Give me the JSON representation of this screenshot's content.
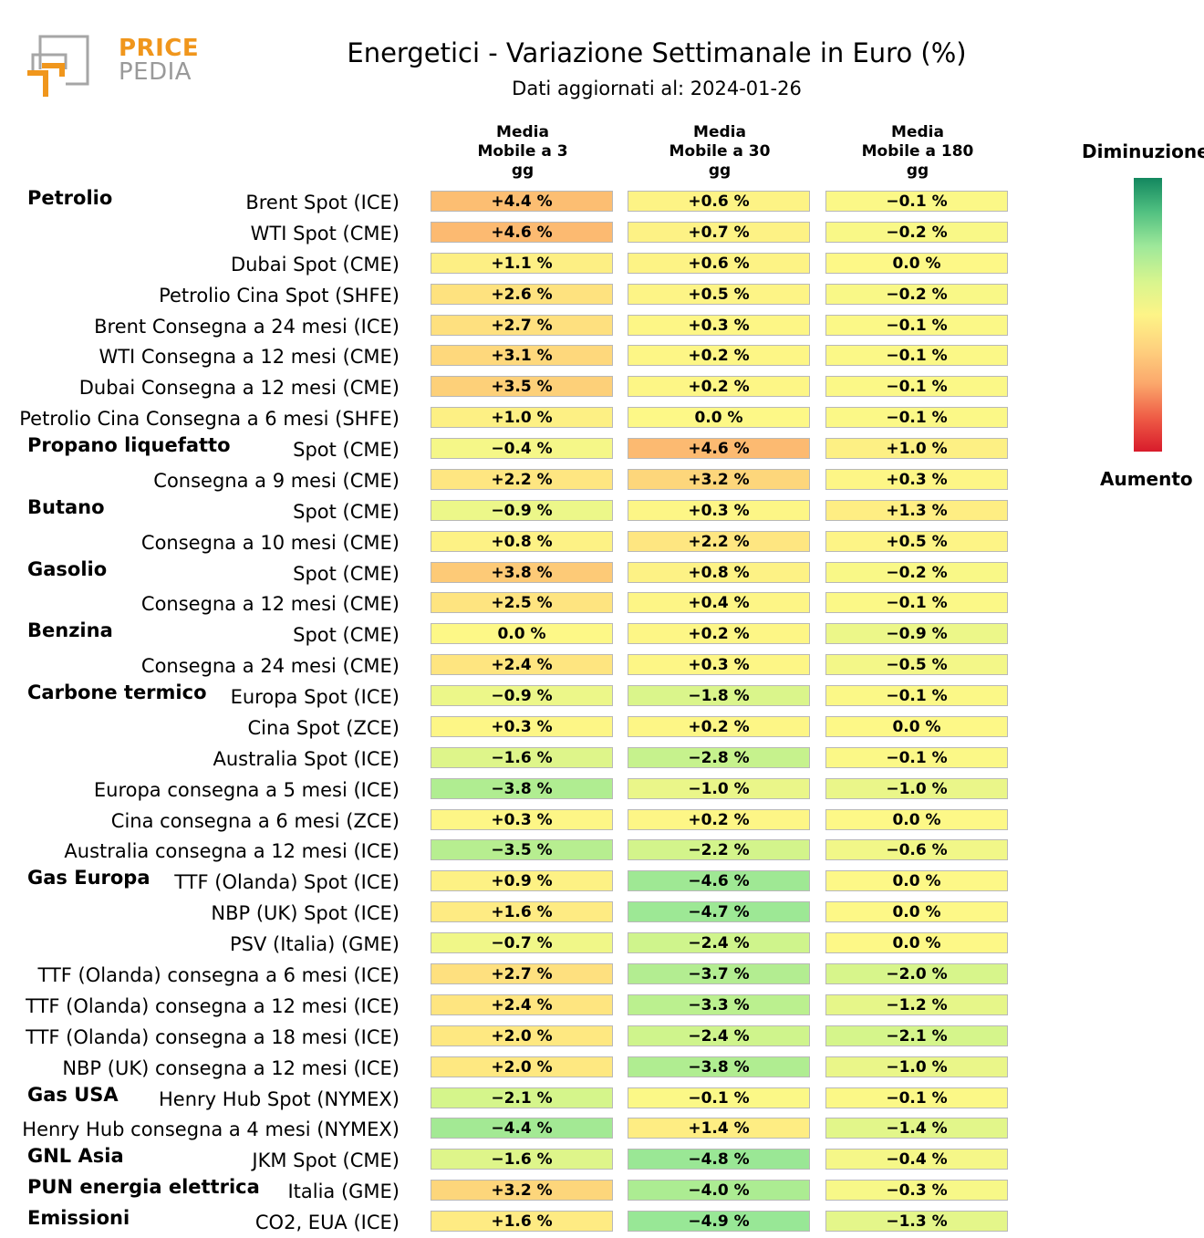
{
  "brand": {
    "line1": "PRICE",
    "line2": "PEDIA",
    "orange": "#f0961c",
    "grey": "#9a9a9a"
  },
  "header": {
    "title": "Energetici - Variazione Settimanale in Euro (%)",
    "subtitle": "Dati aggiornati al: 2024-01-26"
  },
  "legend": {
    "top_label": "Diminuzione",
    "bottom_label": "Aumento",
    "colors": [
      "#13875f",
      "#9ee89a",
      "#fdf487",
      "#fba86c",
      "#d81b2b"
    ]
  },
  "chart_data": {
    "type": "table",
    "title": "Energetici - Variazione Settimanale in Euro (%)",
    "columns": [
      "Media\nMobile a 3\ngg",
      "Media\nMobile a 30\ngg",
      "Media\nMobile a 180\ngg"
    ],
    "rows": [
      {
        "group": "Petrolio",
        "label": "Brent Spot (ICE)",
        "values": [
          "+4.4 %",
          "+0.6 %",
          "−0.1 %"
        ],
        "numeric": [
          4.4,
          0.6,
          -0.1
        ]
      },
      {
        "group": "",
        "label": "WTI Spot (CME)",
        "values": [
          "+4.6 %",
          "+0.7 %",
          "−0.2 %"
        ],
        "numeric": [
          4.6,
          0.7,
          -0.2
        ]
      },
      {
        "group": "",
        "label": "Dubai Spot (CME)",
        "values": [
          "+1.1 %",
          "+0.6 %",
          "0.0 %"
        ],
        "numeric": [
          1.1,
          0.6,
          0.0
        ]
      },
      {
        "group": "",
        "label": "Petrolio Cina Spot (SHFE)",
        "values": [
          "+2.6 %",
          "+0.5 %",
          "−0.2 %"
        ],
        "numeric": [
          2.6,
          0.5,
          -0.2
        ]
      },
      {
        "group": "",
        "label": "Brent Consegna a 24 mesi (ICE)",
        "values": [
          "+2.7 %",
          "+0.3 %",
          "−0.1 %"
        ],
        "numeric": [
          2.7,
          0.3,
          -0.1
        ]
      },
      {
        "group": "",
        "label": "WTI Consegna a 12 mesi (CME)",
        "values": [
          "+3.1 %",
          "+0.2 %",
          "−0.1 %"
        ],
        "numeric": [
          3.1,
          0.2,
          -0.1
        ]
      },
      {
        "group": "",
        "label": "Dubai Consegna a 12 mesi (CME)",
        "values": [
          "+3.5 %",
          "+0.2 %",
          "−0.1 %"
        ],
        "numeric": [
          3.5,
          0.2,
          -0.1
        ]
      },
      {
        "group": "",
        "label": "Petrolio Cina Consegna a 6 mesi (SHFE)",
        "values": [
          "+1.0 %",
          "0.0 %",
          "−0.1 %"
        ],
        "numeric": [
          1.0,
          0.0,
          -0.1
        ]
      },
      {
        "group": "Propano liquefatto",
        "label": "Spot (CME)",
        "values": [
          "−0.4 %",
          "+4.6 %",
          "+1.0 %"
        ],
        "numeric": [
          -0.4,
          4.6,
          1.0
        ]
      },
      {
        "group": "",
        "label": "Consegna a 9 mesi (CME)",
        "values": [
          "+2.2 %",
          "+3.2 %",
          "+0.3 %"
        ],
        "numeric": [
          2.2,
          3.2,
          0.3
        ]
      },
      {
        "group": "Butano",
        "label": "Spot (CME)",
        "values": [
          "−0.9 %",
          "+0.3 %",
          "+1.3 %"
        ],
        "numeric": [
          -0.9,
          0.3,
          1.3
        ]
      },
      {
        "group": "",
        "label": "Consegna a 10 mesi (CME)",
        "values": [
          "+0.8 %",
          "+2.2 %",
          "+0.5 %"
        ],
        "numeric": [
          0.8,
          2.2,
          0.5
        ]
      },
      {
        "group": "Gasolio",
        "label": "Spot (CME)",
        "values": [
          "+3.8 %",
          "+0.8 %",
          "−0.2 %"
        ],
        "numeric": [
          3.8,
          0.8,
          -0.2
        ]
      },
      {
        "group": "",
        "label": "Consegna a 12 mesi (CME)",
        "values": [
          "+2.5 %",
          "+0.4 %",
          "−0.1 %"
        ],
        "numeric": [
          2.5,
          0.4,
          -0.1
        ]
      },
      {
        "group": "Benzina",
        "label": "Spot (CME)",
        "values": [
          "0.0 %",
          "+0.2 %",
          "−0.9 %"
        ],
        "numeric": [
          0.0,
          0.2,
          -0.9
        ]
      },
      {
        "group": "",
        "label": "Consegna a 24 mesi (CME)",
        "values": [
          "+2.4 %",
          "+0.3 %",
          "−0.5 %"
        ],
        "numeric": [
          2.4,
          0.3,
          -0.5
        ]
      },
      {
        "group": "Carbone termico",
        "label": "Europa Spot (ICE)",
        "values": [
          "−0.9 %",
          "−1.8 %",
          "−0.1 %"
        ],
        "numeric": [
          -0.9,
          -1.8,
          -0.1
        ]
      },
      {
        "group": "",
        "label": "Cina Spot (ZCE)",
        "values": [
          "+0.3 %",
          "+0.2 %",
          "0.0 %"
        ],
        "numeric": [
          0.3,
          0.2,
          0.0
        ]
      },
      {
        "group": "",
        "label": "Australia Spot (ICE)",
        "values": [
          "−1.6 %",
          "−2.8 %",
          "−0.1 %"
        ],
        "numeric": [
          -1.6,
          -2.8,
          -0.1
        ]
      },
      {
        "group": "",
        "label": "Europa consegna a 5 mesi (ICE)",
        "values": [
          "−3.8 %",
          "−1.0 %",
          "−1.0 %"
        ],
        "numeric": [
          -3.8,
          -1.0,
          -1.0
        ]
      },
      {
        "group": "",
        "label": "Cina consegna a 6 mesi (ZCE)",
        "values": [
          "+0.3 %",
          "+0.2 %",
          "0.0 %"
        ],
        "numeric": [
          0.3,
          0.2,
          0.0
        ]
      },
      {
        "group": "",
        "label": "Australia consegna a 12 mesi (ICE)",
        "values": [
          "−3.5 %",
          "−2.2 %",
          "−0.6 %"
        ],
        "numeric": [
          -3.5,
          -2.2,
          -0.6
        ]
      },
      {
        "group": "Gas Europa",
        "label": "TTF (Olanda) Spot (ICE)",
        "values": [
          "+0.9 %",
          "−4.6 %",
          "0.0 %"
        ],
        "numeric": [
          0.9,
          -4.6,
          0.0
        ]
      },
      {
        "group": "",
        "label": "NBP (UK) Spot (ICE)",
        "values": [
          "+1.6 %",
          "−4.7 %",
          "0.0 %"
        ],
        "numeric": [
          1.6,
          -4.7,
          0.0
        ]
      },
      {
        "group": "",
        "label": "PSV (Italia) (GME)",
        "values": [
          "−0.7 %",
          "−2.4 %",
          "0.0 %"
        ],
        "numeric": [
          -0.7,
          -2.4,
          0.0
        ]
      },
      {
        "group": "",
        "label": "TTF (Olanda) consegna a 6 mesi (ICE)",
        "values": [
          "+2.7 %",
          "−3.7 %",
          "−2.0 %"
        ],
        "numeric": [
          2.7,
          -3.7,
          -2.0
        ]
      },
      {
        "group": "",
        "label": "TTF (Olanda) consegna a 12 mesi (ICE)",
        "values": [
          "+2.4 %",
          "−3.3 %",
          "−1.2 %"
        ],
        "numeric": [
          2.4,
          -3.3,
          -1.2
        ]
      },
      {
        "group": "",
        "label": "TTF (Olanda) consegna a 18 mesi (ICE)",
        "values": [
          "+2.0 %",
          "−2.4 %",
          "−2.1 %"
        ],
        "numeric": [
          2.0,
          -2.4,
          -2.1
        ]
      },
      {
        "group": "",
        "label": "NBP (UK) consegna a 12 mesi (ICE)",
        "values": [
          "+2.0 %",
          "−3.8 %",
          "−1.0 %"
        ],
        "numeric": [
          2.0,
          -3.8,
          -1.0
        ]
      },
      {
        "group": "Gas USA",
        "label": "Henry Hub Spot (NYMEX)",
        "values": [
          "−2.1 %",
          "−0.1 %",
          "−0.1 %"
        ],
        "numeric": [
          -2.1,
          -0.1,
          -0.1
        ]
      },
      {
        "group": "",
        "label": "Henry Hub consegna a 4 mesi (NYMEX)",
        "values": [
          "−4.4 %",
          "+1.4 %",
          "−1.4 %"
        ],
        "numeric": [
          -4.4,
          1.4,
          -1.4
        ]
      },
      {
        "group": "GNL Asia",
        "label": "JKM Spot (CME)",
        "values": [
          "−1.6 %",
          "−4.8 %",
          "−0.4 %"
        ],
        "numeric": [
          -1.6,
          -4.8,
          -0.4
        ]
      },
      {
        "group": "PUN energia elettrica",
        "label": "Italia (GME)",
        "values": [
          "+3.2 %",
          "−4.0 %",
          "−0.3 %"
        ],
        "numeric": [
          3.2,
          -4.0,
          -0.3
        ]
      },
      {
        "group": "Emissioni",
        "label": "CO2, EUA (ICE)",
        "values": [
          "+1.6 %",
          "−4.9 %",
          "−1.3 %"
        ],
        "numeric": [
          1.6,
          -4.9,
          -1.3
        ]
      }
    ]
  }
}
